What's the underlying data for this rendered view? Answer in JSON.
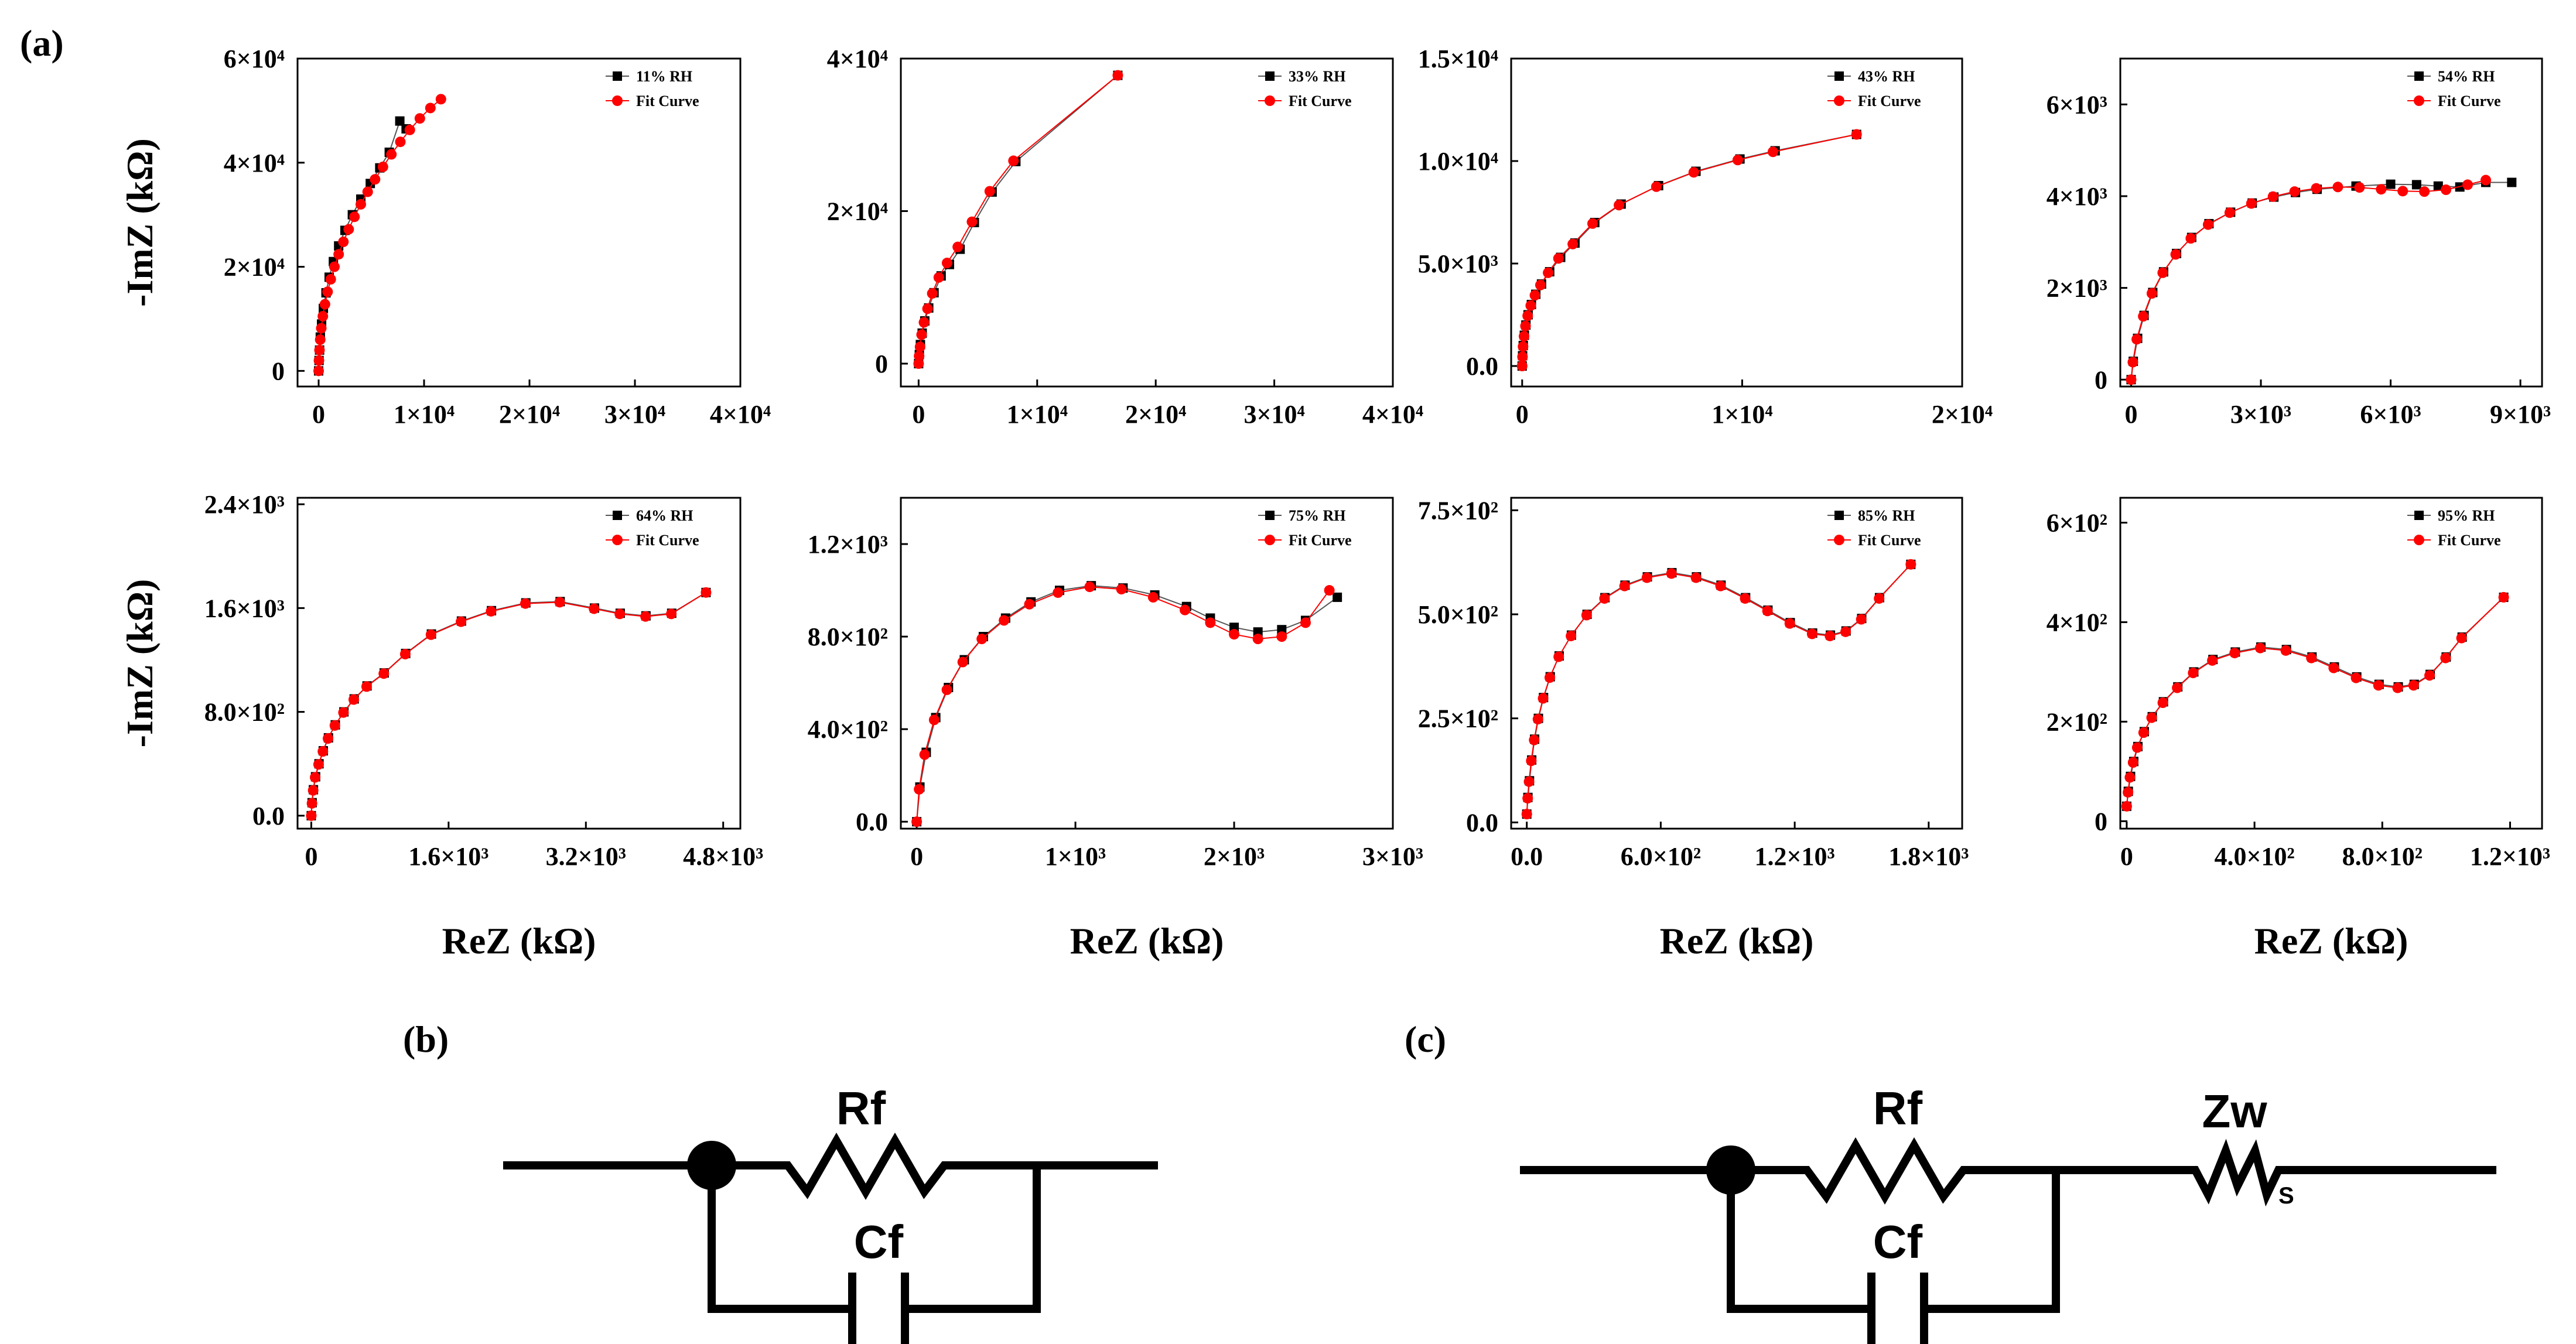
{
  "figure": {
    "panel_labels": {
      "a": "(a)",
      "b": "(b)",
      "c": "(c)"
    },
    "ylabel": "-ImZ (kΩ)",
    "xlabel": "ReZ (kΩ)",
    "legend_fit": "Fit Curve",
    "colors": {
      "measured": "#000000",
      "fit": "#ff0000",
      "axis": "#000000"
    }
  },
  "chart_data": [
    {
      "type": "scatter",
      "rh": "11% RH",
      "xlim": [
        -2000,
        40000
      ],
      "ylim": [
        -3000,
        60000
      ],
      "xticks": [
        0,
        10000,
        20000,
        30000,
        40000
      ],
      "xtick_labels": [
        "0",
        "1×10⁴",
        "2×10⁴",
        "3×10⁴",
        "4×10⁴"
      ],
      "yticks": [
        0,
        20000,
        40000,
        60000
      ],
      "ytick_labels": [
        "0",
        "2×10⁴",
        "4×10⁴",
        "6×10⁴"
      ],
      "xlabel": "",
      "ylabel": "-ImZ (kΩ)",
      "series": [
        {
          "name": "11% RH",
          "x": [
            0,
            40,
            90,
            160,
            280,
            450,
            700,
            1000,
            1400,
            1900,
            2500,
            3200,
            4000,
            4900,
            5800,
            6700,
            7700,
            8300
          ],
          "y": [
            0,
            2000,
            4000,
            6500,
            9000,
            12000,
            15000,
            18000,
            21000,
            24000,
            27000,
            30000,
            33000,
            36000,
            39000,
            42000,
            48000,
            46500
          ]
        },
        {
          "name": "Fit Curve",
          "x": [
            0,
            30,
            80,
            150,
            250,
            400,
            600,
            850,
            1150,
            1500,
            1900,
            2350,
            2850,
            3400,
            4000,
            4650,
            5350,
            6100,
            6900,
            7750,
            8650,
            9600,
            10600,
            11600
          ],
          "y": [
            0,
            2000,
            4000,
            6000,
            8200,
            10500,
            12800,
            15200,
            17600,
            20000,
            22400,
            24800,
            27200,
            29600,
            32000,
            34400,
            36800,
            39200,
            41600,
            44000,
            46300,
            48500,
            50500,
            52200
          ]
        }
      ]
    },
    {
      "type": "scatter",
      "rh": "33% RH",
      "xlim": [
        -1500,
        40000
      ],
      "ylim": [
        -3000,
        40000
      ],
      "xticks": [
        0,
        10000,
        20000,
        30000,
        40000
      ],
      "xtick_labels": [
        "0",
        "1×10⁴",
        "2×10⁴",
        "3×10⁴",
        "4×10⁴"
      ],
      "yticks": [
        0,
        20000,
        40000
      ],
      "ytick_labels": [
        "0",
        "2×10⁴",
        "4×10⁴"
      ],
      "xlabel": "",
      "ylabel": "",
      "series": [
        {
          "name": "33% RH",
          "x": [
            0,
            60,
            150,
            300,
            520,
            850,
            1300,
            1900,
            2600,
            3500,
            4700,
            6200,
            8200,
            16800
          ],
          "y": [
            0,
            1200,
            2500,
            4000,
            5600,
            7300,
            9300,
            11500,
            13000,
            15000,
            18500,
            22500,
            26500,
            37800
          ]
        },
        {
          "name": "Fit Curve",
          "x": [
            0,
            40,
            120,
            250,
            450,
            750,
            1150,
            1700,
            2400,
            3300,
            4500,
            6000,
            8000,
            16800
          ],
          "y": [
            0,
            1000,
            2200,
            3800,
            5400,
            7200,
            9200,
            11300,
            13200,
            15300,
            18600,
            22600,
            26600,
            37800
          ]
        }
      ]
    },
    {
      "type": "scatter",
      "rh": "43% RH",
      "xlim": [
        -500,
        20000
      ],
      "ylim": [
        -1000,
        15000
      ],
      "xticks": [
        0,
        10000,
        20000
      ],
      "xtick_labels": [
        "0",
        "1×10⁴",
        "2×10⁴"
      ],
      "yticks": [
        0,
        5000,
        10000,
        15000
      ],
      "ytick_labels": [
        "0.0",
        "5.0×10³",
        "1.0×10⁴",
        "1.5×10⁴"
      ],
      "xlabel": "",
      "ylabel": "",
      "series": [
        {
          "name": "43% RH",
          "x": [
            0,
            20,
            50,
            100,
            170,
            270,
            420,
            620,
            880,
            1250,
            1750,
            2400,
            3300,
            4500,
            6200,
            7900,
            9900,
            11500,
            15200
          ],
          "y": [
            0,
            500,
            1000,
            1500,
            2000,
            2500,
            3000,
            3500,
            4000,
            4600,
            5300,
            6000,
            7000,
            7900,
            8800,
            9500,
            10100,
            10500,
            11300
          ]
        },
        {
          "name": "Fit Curve",
          "x": [
            0,
            15,
            40,
            85,
            150,
            250,
            390,
            580,
            830,
            1180,
            1650,
            2300,
            3200,
            4400,
            6100,
            7800,
            9800,
            11400,
            15200
          ],
          "y": [
            0,
            450,
            950,
            1450,
            1950,
            2450,
            2950,
            3450,
            3950,
            4550,
            5250,
            5950,
            6950,
            7850,
            8750,
            9450,
            10050,
            10450,
            11300
          ]
        }
      ]
    },
    {
      "type": "scatter",
      "rh": "54% RH",
      "xlim": [
        -250,
        9500
      ],
      "ylim": [
        -150,
        7000
      ],
      "xticks": [
        0,
        3000,
        6000,
        9000
      ],
      "xtick_labels": [
        "0",
        "3×10³",
        "6×10³",
        "9×10³"
      ],
      "yticks": [
        0,
        2000,
        4000,
        6000
      ],
      "ytick_labels": [
        "0",
        "2×10³",
        "4×10³",
        "6×10³"
      ],
      "xlabel": "",
      "ylabel": "",
      "series": [
        {
          "name": "54% RH",
          "x": [
            0,
            50,
            150,
            300,
            500,
            750,
            1050,
            1400,
            1800,
            2300,
            2800,
            3300,
            3800,
            4300,
            5200,
            6000,
            6600,
            7100,
            7600,
            8200,
            8800
          ],
          "y": [
            0,
            400,
            900,
            1400,
            1900,
            2350,
            2750,
            3100,
            3400,
            3650,
            3850,
            3980,
            4080,
            4150,
            4220,
            4260,
            4250,
            4220,
            4200,
            4300,
            4300
          ]
        },
        {
          "name": "Fit Curve",
          "x": [
            0,
            40,
            130,
            280,
            480,
            730,
            1030,
            1380,
            1780,
            2280,
            2780,
            3280,
            3780,
            4280,
            4780,
            5280,
            5780,
            6280,
            6780,
            7280,
            7780,
            8200
          ],
          "y": [
            0,
            380,
            880,
            1380,
            1880,
            2330,
            2730,
            3080,
            3380,
            3640,
            3840,
            3990,
            4100,
            4170,
            4200,
            4190,
            4150,
            4110,
            4100,
            4140,
            4250,
            4350
          ]
        }
      ]
    },
    {
      "type": "scatter",
      "rh": "64% RH",
      "xlim": [
        -160,
        5000
      ],
      "ylim": [
        -100,
        2450
      ],
      "xticks": [
        0,
        1600,
        3200,
        4800
      ],
      "xtick_labels": [
        "0",
        "1.6×10³",
        "3.2×10³",
        "4.8×10³"
      ],
      "yticks": [
        0,
        800,
        1600,
        2400
      ],
      "ytick_labels": [
        "0.0",
        "8.0×10²",
        "1.6×10³",
        "2.4×10³"
      ],
      "xlabel": "ReZ (kΩ)",
      "ylabel": "-ImZ (kΩ)",
      "series": [
        {
          "name": "64% RH",
          "x": [
            0,
            10,
            25,
            50,
            90,
            140,
            200,
            280,
            380,
            500,
            650,
            850,
            1100,
            1400,
            1750,
            2100,
            2500,
            2900,
            3300,
            3600,
            3900,
            4200,
            4600
          ],
          "y": [
            0,
            100,
            200,
            300,
            400,
            500,
            600,
            700,
            800,
            900,
            1000,
            1100,
            1250,
            1400,
            1500,
            1580,
            1640,
            1650,
            1600,
            1560,
            1540,
            1560,
            1720
          ]
        },
        {
          "name": "Fit Curve",
          "x": [
            0,
            8,
            22,
            45,
            85,
            135,
            195,
            275,
            375,
            495,
            645,
            845,
            1095,
            1395,
            1745,
            2095,
            2495,
            2895,
            3295,
            3595,
            3895,
            4195,
            4600
          ],
          "y": [
            0,
            95,
            195,
            295,
            395,
            495,
            595,
            695,
            795,
            895,
            995,
            1095,
            1245,
            1395,
            1495,
            1575,
            1635,
            1645,
            1595,
            1555,
            1535,
            1555,
            1720
          ]
        }
      ]
    },
    {
      "type": "scatter",
      "rh": "75% RH",
      "xlim": [
        -100,
        3000
      ],
      "ylim": [
        -30,
        1400
      ],
      "xticks": [
        0,
        1000,
        2000,
        3000
      ],
      "xtick_labels": [
        "0",
        "1×10³",
        "2×10³",
        "3×10³"
      ],
      "yticks": [
        0,
        400,
        800,
        1200
      ],
      "ytick_labels": [
        "0.0",
        "4.0×10²",
        "8.0×10²",
        "1.2×10³"
      ],
      "xlabel": "ReZ (kΩ)",
      "ylabel": "",
      "series": [
        {
          "name": "75% RH",
          "x": [
            0,
            20,
            60,
            120,
            200,
            300,
            420,
            560,
            720,
            900,
            1100,
            1300,
            1500,
            1700,
            1850,
            2000,
            2150,
            2300,
            2450,
            2650
          ],
          "y": [
            0,
            150,
            300,
            450,
            580,
            700,
            800,
            880,
            950,
            1000,
            1020,
            1010,
            980,
            930,
            880,
            840,
            820,
            830,
            870,
            970
          ]
        },
        {
          "name": "Fit Curve",
          "x": [
            0,
            15,
            50,
            110,
            190,
            290,
            410,
            550,
            710,
            890,
            1090,
            1290,
            1490,
            1690,
            1850,
            2000,
            2150,
            2300,
            2450,
            2600
          ],
          "y": [
            0,
            140,
            290,
            440,
            570,
            690,
            790,
            870,
            940,
            990,
            1015,
            1005,
            970,
            915,
            860,
            810,
            790,
            800,
            860,
            1000
          ]
        }
      ]
    },
    {
      "type": "scatter",
      "rh": "85% RH",
      "xlim": [
        -70,
        1950
      ],
      "ylim": [
        -15,
        780
      ],
      "xticks": [
        0,
        600,
        1200,
        1800
      ],
      "xtick_labels": [
        "0.0",
        "6.0×10²",
        "1.2×10³",
        "1.8×10³"
      ],
      "yticks": [
        0,
        250,
        500,
        750
      ],
      "ytick_labels": [
        "0.0",
        "2.5×10²",
        "5.0×10²",
        "7.5×10²"
      ],
      "xlabel": "ReZ (kΩ)",
      "ylabel": "",
      "series": [
        {
          "name": "85% RH",
          "x": [
            0,
            5,
            12,
            22,
            35,
            52,
            75,
            105,
            145,
            200,
            270,
            350,
            440,
            540,
            650,
            760,
            870,
            980,
            1080,
            1180,
            1280,
            1360,
            1430,
            1500,
            1580,
            1720
          ],
          "y": [
            20,
            60,
            100,
            150,
            200,
            250,
            300,
            350,
            400,
            450,
            500,
            540,
            570,
            590,
            600,
            590,
            570,
            540,
            510,
            480,
            455,
            450,
            460,
            490,
            540,
            620
          ]
        },
        {
          "name": "Fit Curve",
          "x": [
            0,
            4,
            10,
            20,
            33,
            50,
            73,
            103,
            143,
            198,
            268,
            348,
            438,
            538,
            648,
            758,
            868,
            978,
            1078,
            1178,
            1278,
            1358,
            1428,
            1498,
            1578,
            1720
          ],
          "y": [
            20,
            58,
            98,
            148,
            198,
            248,
            298,
            348,
            398,
            448,
            498,
            538,
            568,
            588,
            598,
            588,
            568,
            538,
            508,
            478,
            453,
            448,
            458,
            488,
            538,
            620
          ]
        }
      ]
    },
    {
      "type": "scatter",
      "rh": "95% RH",
      "xlim": [
        -20,
        1300
      ],
      "ylim": [
        -15,
        650
      ],
      "xticks": [
        0,
        400,
        800,
        1200
      ],
      "xtick_labels": [
        "0",
        "4.0×10²",
        "8.0×10²",
        "1.2×10³"
      ],
      "yticks": [
        0,
        200,
        400,
        600
      ],
      "ytick_labels": [
        "0",
        "2×10²",
        "4×10²",
        "6×10²"
      ],
      "xlabel": "ReZ (kΩ)",
      "ylabel": "",
      "series": [
        {
          "name": "95% RH",
          "x": [
            0,
            5,
            12,
            22,
            35,
            55,
            80,
            115,
            160,
            210,
            270,
            340,
            420,
            500,
            580,
            650,
            720,
            790,
            850,
            900,
            950,
            1000,
            1050,
            1180
          ],
          "y": [
            30,
            60,
            90,
            120,
            150,
            180,
            210,
            240,
            270,
            300,
            325,
            340,
            350,
            345,
            330,
            310,
            290,
            275,
            270,
            275,
            295,
            330,
            370,
            450
          ]
        },
        {
          "name": "Fit Curve",
          "x": [
            0,
            4,
            10,
            20,
            33,
            53,
            78,
            113,
            158,
            208,
            268,
            338,
            418,
            498,
            578,
            648,
            718,
            788,
            848,
            898,
            948,
            998,
            1048,
            1180
          ],
          "y": [
            30,
            58,
            88,
            118,
            148,
            178,
            208,
            238,
            268,
            298,
            323,
            338,
            348,
            343,
            328,
            308,
            288,
            273,
            268,
            273,
            293,
            328,
            368,
            450
          ]
        }
      ]
    }
  ],
  "circuits": {
    "b": {
      "resistor": "Rf",
      "capacitor": "Cf"
    },
    "c": {
      "resistor": "Rf",
      "capacitor": "Cf",
      "warburg": "Zw",
      "warburg_sub": "S"
    }
  }
}
